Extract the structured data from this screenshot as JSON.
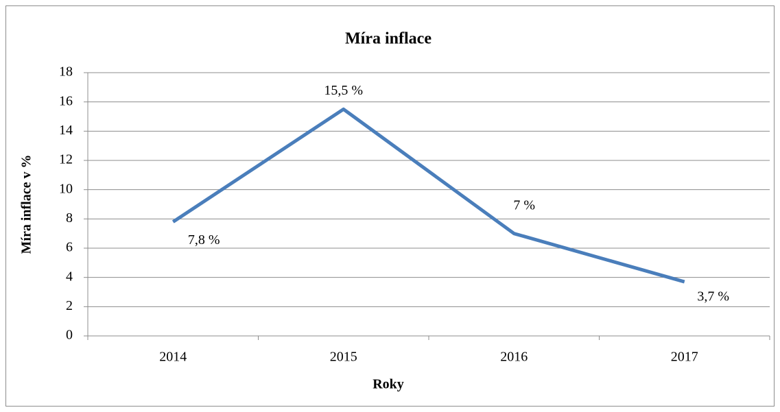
{
  "chart_data": {
    "type": "line",
    "title": "Míra inflace",
    "x_label": "Roky",
    "y_label": "Míra inflace v %",
    "categories": [
      "2014",
      "2015",
      "2016",
      "2017"
    ],
    "values": [
      7.8,
      15.5,
      7,
      3.7
    ],
    "value_labels": [
      "7,8 %",
      "15,5 %",
      "7 %",
      "3,7 %"
    ],
    "color": "#4a7ebb",
    "ylim": [
      0,
      18
    ],
    "yticks": [
      0,
      2,
      4,
      6,
      8,
      10,
      12,
      14,
      16,
      18
    ],
    "grid": true
  }
}
